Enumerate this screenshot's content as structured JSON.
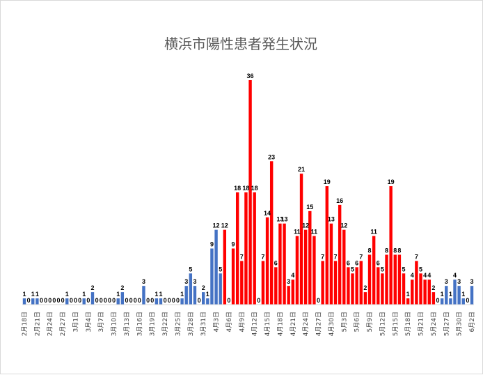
{
  "chart_data": {
    "type": "bar",
    "title": "横浜市陽性患者発生状況",
    "xlabel": "",
    "ylabel": "",
    "ylim": [
      0,
      37
    ],
    "grid": false,
    "legend": "none",
    "colors": {
      "before_apr_6": "#4472c4",
      "from_apr_6": "#ff0000",
      "from_may_24": "#4472c4"
    },
    "x_tick_labels": [
      "2月18日",
      "2月21日",
      "2月24日",
      "2月27日",
      "3月1日",
      "3月4日",
      "3月7日",
      "3月10日",
      "3月13日",
      "3月16日",
      "3月19日",
      "3月22日",
      "3月25日",
      "3月28日",
      "3月31日",
      "4月3日",
      "4月6日",
      "4月9日",
      "4月12日",
      "4月15日",
      "4月18日",
      "4月21日",
      "4月24日",
      "4月27日",
      "4月30日",
      "5月3日",
      "5月6日",
      "5月9日",
      "5月12日",
      "5月15日",
      "5月18日",
      "5月21日",
      "5月24日",
      "5月27日",
      "5月30日",
      "6月2日"
    ],
    "values": [
      1,
      0,
      1,
      1,
      0,
      0,
      0,
      0,
      0,
      0,
      1,
      0,
      0,
      0,
      1,
      0,
      2,
      0,
      0,
      0,
      0,
      0,
      1,
      2,
      0,
      0,
      0,
      0,
      3,
      0,
      0,
      1,
      1,
      0,
      0,
      0,
      0,
      1,
      3,
      5,
      3,
      0,
      2,
      1,
      9,
      12,
      5,
      12,
      0,
      9,
      18,
      7,
      18,
      36,
      18,
      0,
      7,
      14,
      23,
      6,
      13,
      13,
      3,
      4,
      11,
      21,
      12,
      15,
      11,
      0,
      7,
      19,
      13,
      7,
      16,
      12,
      6,
      5,
      6,
      7,
      2,
      8,
      11,
      6,
      5,
      8,
      19,
      8,
      8,
      5,
      1,
      4,
      7,
      5,
      4,
      4,
      2,
      0,
      1,
      3,
      1,
      4,
      3,
      1,
      0,
      3
    ]
  }
}
